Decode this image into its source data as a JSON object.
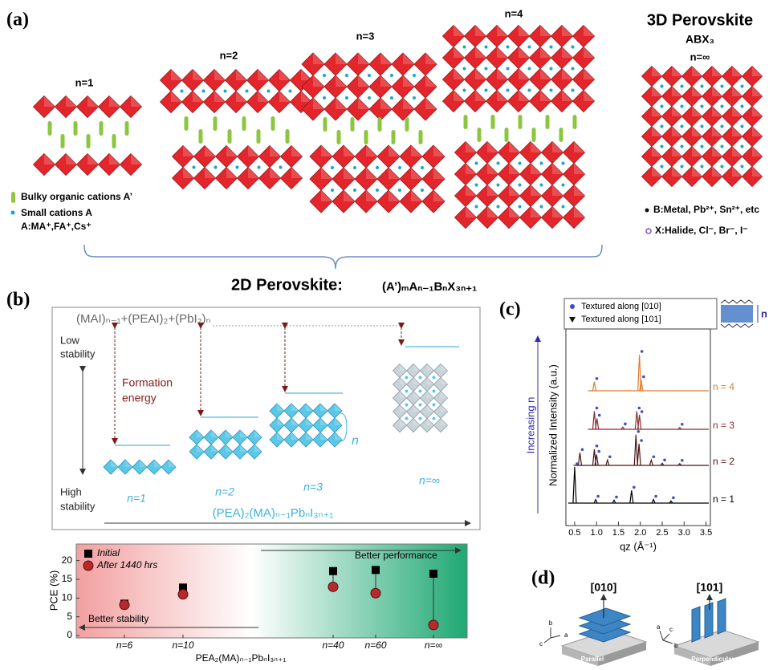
{
  "panel_a": {
    "label": "(a)",
    "structures": [
      "n=1",
      "n=2",
      "n=3",
      "n=4"
    ],
    "bulk": {
      "title": "3D Perovskite",
      "formula": "ABX₃",
      "n": "n=∞"
    },
    "legend": [
      "Bulky organic cations A’",
      "Small  cations A",
      "A:MA⁺,FA⁺,Cs⁺",
      "B:Metal, Pb²⁺, Sn²⁺, etc",
      "X:Halide, Cl⁻, Br⁻, I⁻"
    ],
    "caption": "2D Perovskite:",
    "caption_formula": "(A’)ₘAₙ₋₁BₙX₃ₙ₊₁"
  },
  "panel_b": {
    "label": "(b)",
    "equation": "(MAI)ₙ₋₁+(PEAI)₂+(PbI₂)ₙ",
    "low_stability": [
      "Low",
      "stability"
    ],
    "high_stability": [
      "High",
      "stability"
    ],
    "formation_energy": [
      "Formation",
      "energy"
    ],
    "phases": [
      "n=1",
      "n=2",
      "n=3",
      "n=∞"
    ],
    "layer_n": "n",
    "axis": "(PEA)₂(MA)ₙ₋₁PbₙI₃ₙ₊₁",
    "chart": {
      "type": "scatter",
      "y_label": "PCE (%)",
      "x_label": "PEA₂(MA)ₙ₋₁PbₙI₃ₙ₊₁",
      "categories": [
        "n=6",
        "n=10",
        "n=40",
        "n=60",
        "n=∞"
      ],
      "series": [
        {
          "name": "Initial",
          "color": "#000000",
          "marker": "square",
          "values": [
            8.5,
            12.8,
            17.2,
            17.5,
            16.5
          ]
        },
        {
          "name": "After 1440 hrs",
          "color": "#b52a2a",
          "marker": "circle",
          "values": [
            8.2,
            11,
            13,
            11.3,
            2.8
          ]
        }
      ],
      "ylim": [
        0,
        24
      ],
      "yticks": [
        0,
        5,
        10,
        15,
        20
      ],
      "annotations": [
        "Better performance",
        "Better stability"
      ]
    }
  },
  "panel_c": {
    "label": "(c)",
    "legend": [
      "Textured along [010]",
      "Textured along [101]"
    ],
    "schematic_label": "n",
    "trend": "Increasing n",
    "y_label": "Normalized Intensity (a.u.)",
    "x_label": "qz (Å⁻¹)",
    "xlim": [
      0.3,
      3.6
    ],
    "xticks": [
      0.5,
      {
        "value": 1,
        "label": "1.0"
      },
      1.5,
      {
        "value": 2,
        "label": "2.0"
      },
      2.5,
      {
        "value": 3,
        "label": "3.0"
      },
      3.5
    ],
    "curves": [
      {
        "name": "n = 4",
        "color": "#e07a2c",
        "x": [
          0.95,
          1.98,
          2.02
        ],
        "values": [
          0.25,
          1.0,
          0.3
        ]
      },
      {
        "name": "n = 3",
        "color": "#8a2c2c",
        "x": [
          0.95,
          1.01,
          1.6,
          1.92,
          1.98,
          2.9
        ],
        "values": [
          0.5,
          0.3,
          0.06,
          0.5,
          0.4,
          0.05
        ]
      },
      {
        "name": "n = 2",
        "color": "#4a1414",
        "x": [
          0.62,
          0.95,
          1.0,
          1.25,
          1.9,
          1.97,
          2.25,
          2.5,
          2.9
        ],
        "values": [
          0.35,
          0.45,
          0.3,
          0.15,
          0.85,
          0.6,
          0.15,
          0.06,
          0.05
        ]
      },
      {
        "name": "n = 1",
        "color": "#000000",
        "x": [
          0.5,
          0.98,
          1.4,
          1.8,
          2.3,
          2.7
        ],
        "values": [
          1.0,
          0.1,
          0.08,
          0.35,
          0.1,
          0.06
        ]
      }
    ]
  },
  "panel_d": {
    "label": "(d)",
    "parallel": {
      "direction": "[010]",
      "name": "Parallel",
      "axes": [
        "b",
        "a",
        "c"
      ]
    },
    "perpendicular": {
      "direction": "[101]",
      "name": "Perpendicular",
      "axes": [
        "a",
        "c",
        "b"
      ]
    }
  }
}
